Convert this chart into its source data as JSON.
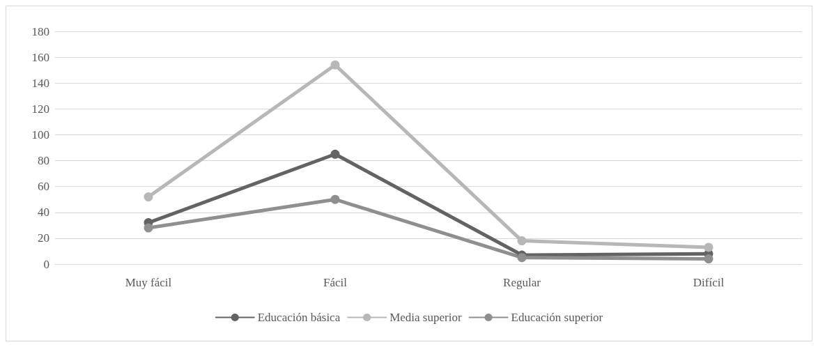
{
  "chart_data": {
    "type": "line",
    "categories": [
      "Muy fácil",
      "Fácil",
      "Regular",
      "Difícil"
    ],
    "series": [
      {
        "name": "Educación básica",
        "color": "#636363",
        "values": [
          32,
          85,
          7,
          8
        ]
      },
      {
        "name": "Media superior",
        "color": "#b7b7b7",
        "values": [
          52,
          154,
          18,
          13
        ]
      },
      {
        "name": "Educación superior",
        "color": "#8f8f8f",
        "values": [
          28,
          50,
          5,
          4
        ]
      }
    ],
    "ylim": [
      0,
      180
    ],
    "yticks": [
      0,
      20,
      40,
      60,
      80,
      100,
      120,
      140,
      160,
      180
    ],
    "grid": "y",
    "legend": "bottom",
    "marker": "circle",
    "line_style": "solid"
  }
}
